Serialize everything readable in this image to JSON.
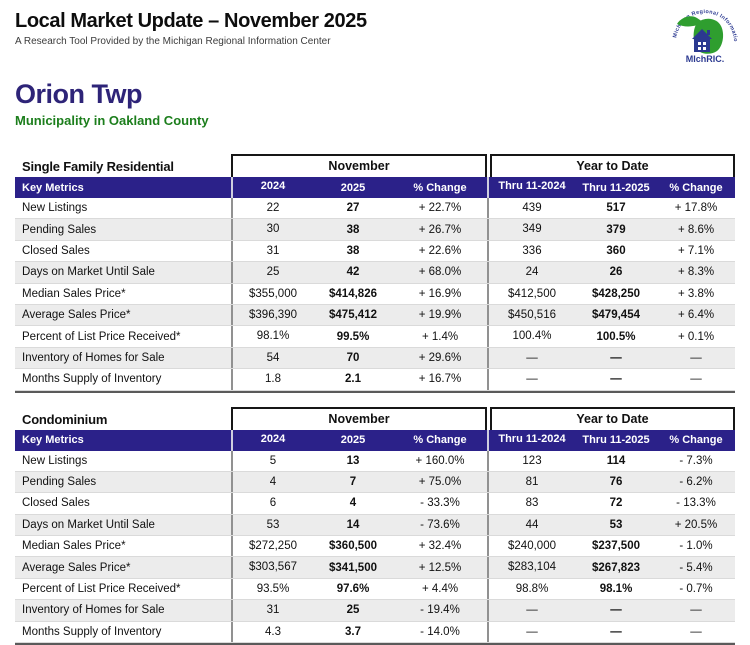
{
  "header": {
    "title": "Local Market Update – November 2025",
    "subtitle": "A Research Tool Provided by the Michigan Regional Information Center",
    "logo": {
      "curved_text": "Michigan Regional Information Center",
      "name": "MIchRIC.",
      "green": "#2f9e2f",
      "blue": "#2b3990"
    }
  },
  "region": {
    "name": "Orion Twp",
    "subtitle": "Municipality in Oakland County"
  },
  "colors": {
    "band": "#2b2189",
    "region_name": "#2e2478",
    "region_subtitle": "#1c7e1c",
    "stripe": "#ececec"
  },
  "shared_headers": {
    "month_group": "November",
    "ytd_group": "Year to Date",
    "key_metrics": "Key Metrics",
    "columns": [
      "2024",
      "2025",
      "% Change",
      "Thru 11-2024",
      "Thru 11-2025",
      "% Change"
    ]
  },
  "tables": [
    {
      "section": "Single Family Residential",
      "rows": [
        {
          "label": "New Listings",
          "values": [
            "22",
            "27",
            "+ 22.7%",
            "439",
            "517",
            "+ 17.8%"
          ]
        },
        {
          "label": "Pending Sales",
          "values": [
            "30",
            "38",
            "+ 26.7%",
            "349",
            "379",
            "+ 8.6%"
          ]
        },
        {
          "label": "Closed Sales",
          "values": [
            "31",
            "38",
            "+ 22.6%",
            "336",
            "360",
            "+ 7.1%"
          ]
        },
        {
          "label": "Days on Market Until Sale",
          "values": [
            "25",
            "42",
            "+ 68.0%",
            "24",
            "26",
            "+ 8.3%"
          ]
        },
        {
          "label": "Median Sales Price*",
          "values": [
            "$355,000",
            "$414,826",
            "+ 16.9%",
            "$412,500",
            "$428,250",
            "+ 3.8%"
          ]
        },
        {
          "label": "Average Sales Price*",
          "values": [
            "$396,390",
            "$475,412",
            "+ 19.9%",
            "$450,516",
            "$479,454",
            "+ 6.4%"
          ]
        },
        {
          "label": "Percent of List Price Received*",
          "values": [
            "98.1%",
            "99.5%",
            "+ 1.4%",
            "100.4%",
            "100.5%",
            "+ 0.1%"
          ]
        },
        {
          "label": "Inventory of Homes for Sale",
          "values": [
            "54",
            "70",
            "+ 29.6%",
            "—",
            "—",
            "—"
          ]
        },
        {
          "label": "Months Supply of Inventory",
          "values": [
            "1.8",
            "2.1",
            "+ 16.7%",
            "—",
            "—",
            "—"
          ]
        }
      ]
    },
    {
      "section": "Condominium",
      "rows": [
        {
          "label": "New Listings",
          "values": [
            "5",
            "13",
            "+ 160.0%",
            "123",
            "114",
            "- 7.3%"
          ]
        },
        {
          "label": "Pending Sales",
          "values": [
            "4",
            "7",
            "+ 75.0%",
            "81",
            "76",
            "- 6.2%"
          ]
        },
        {
          "label": "Closed Sales",
          "values": [
            "6",
            "4",
            "- 33.3%",
            "83",
            "72",
            "- 13.3%"
          ]
        },
        {
          "label": "Days on Market Until Sale",
          "values": [
            "53",
            "14",
            "- 73.6%",
            "44",
            "53",
            "+ 20.5%"
          ]
        },
        {
          "label": "Median Sales Price*",
          "values": [
            "$272,250",
            "$360,500",
            "+ 32.4%",
            "$240,000",
            "$237,500",
            "- 1.0%"
          ]
        },
        {
          "label": "Average Sales Price*",
          "values": [
            "$303,567",
            "$341,500",
            "+ 12.5%",
            "$283,104",
            "$267,823",
            "- 5.4%"
          ]
        },
        {
          "label": "Percent of List Price Received*",
          "values": [
            "93.5%",
            "97.6%",
            "+ 4.4%",
            "98.8%",
            "98.1%",
            "- 0.7%"
          ]
        },
        {
          "label": "Inventory of Homes for Sale",
          "values": [
            "31",
            "25",
            "- 19.4%",
            "—",
            "—",
            "—"
          ]
        },
        {
          "label": "Months Supply of Inventory",
          "values": [
            "4.3",
            "3.7",
            "- 14.0%",
            "—",
            "—",
            "—"
          ]
        }
      ]
    }
  ]
}
